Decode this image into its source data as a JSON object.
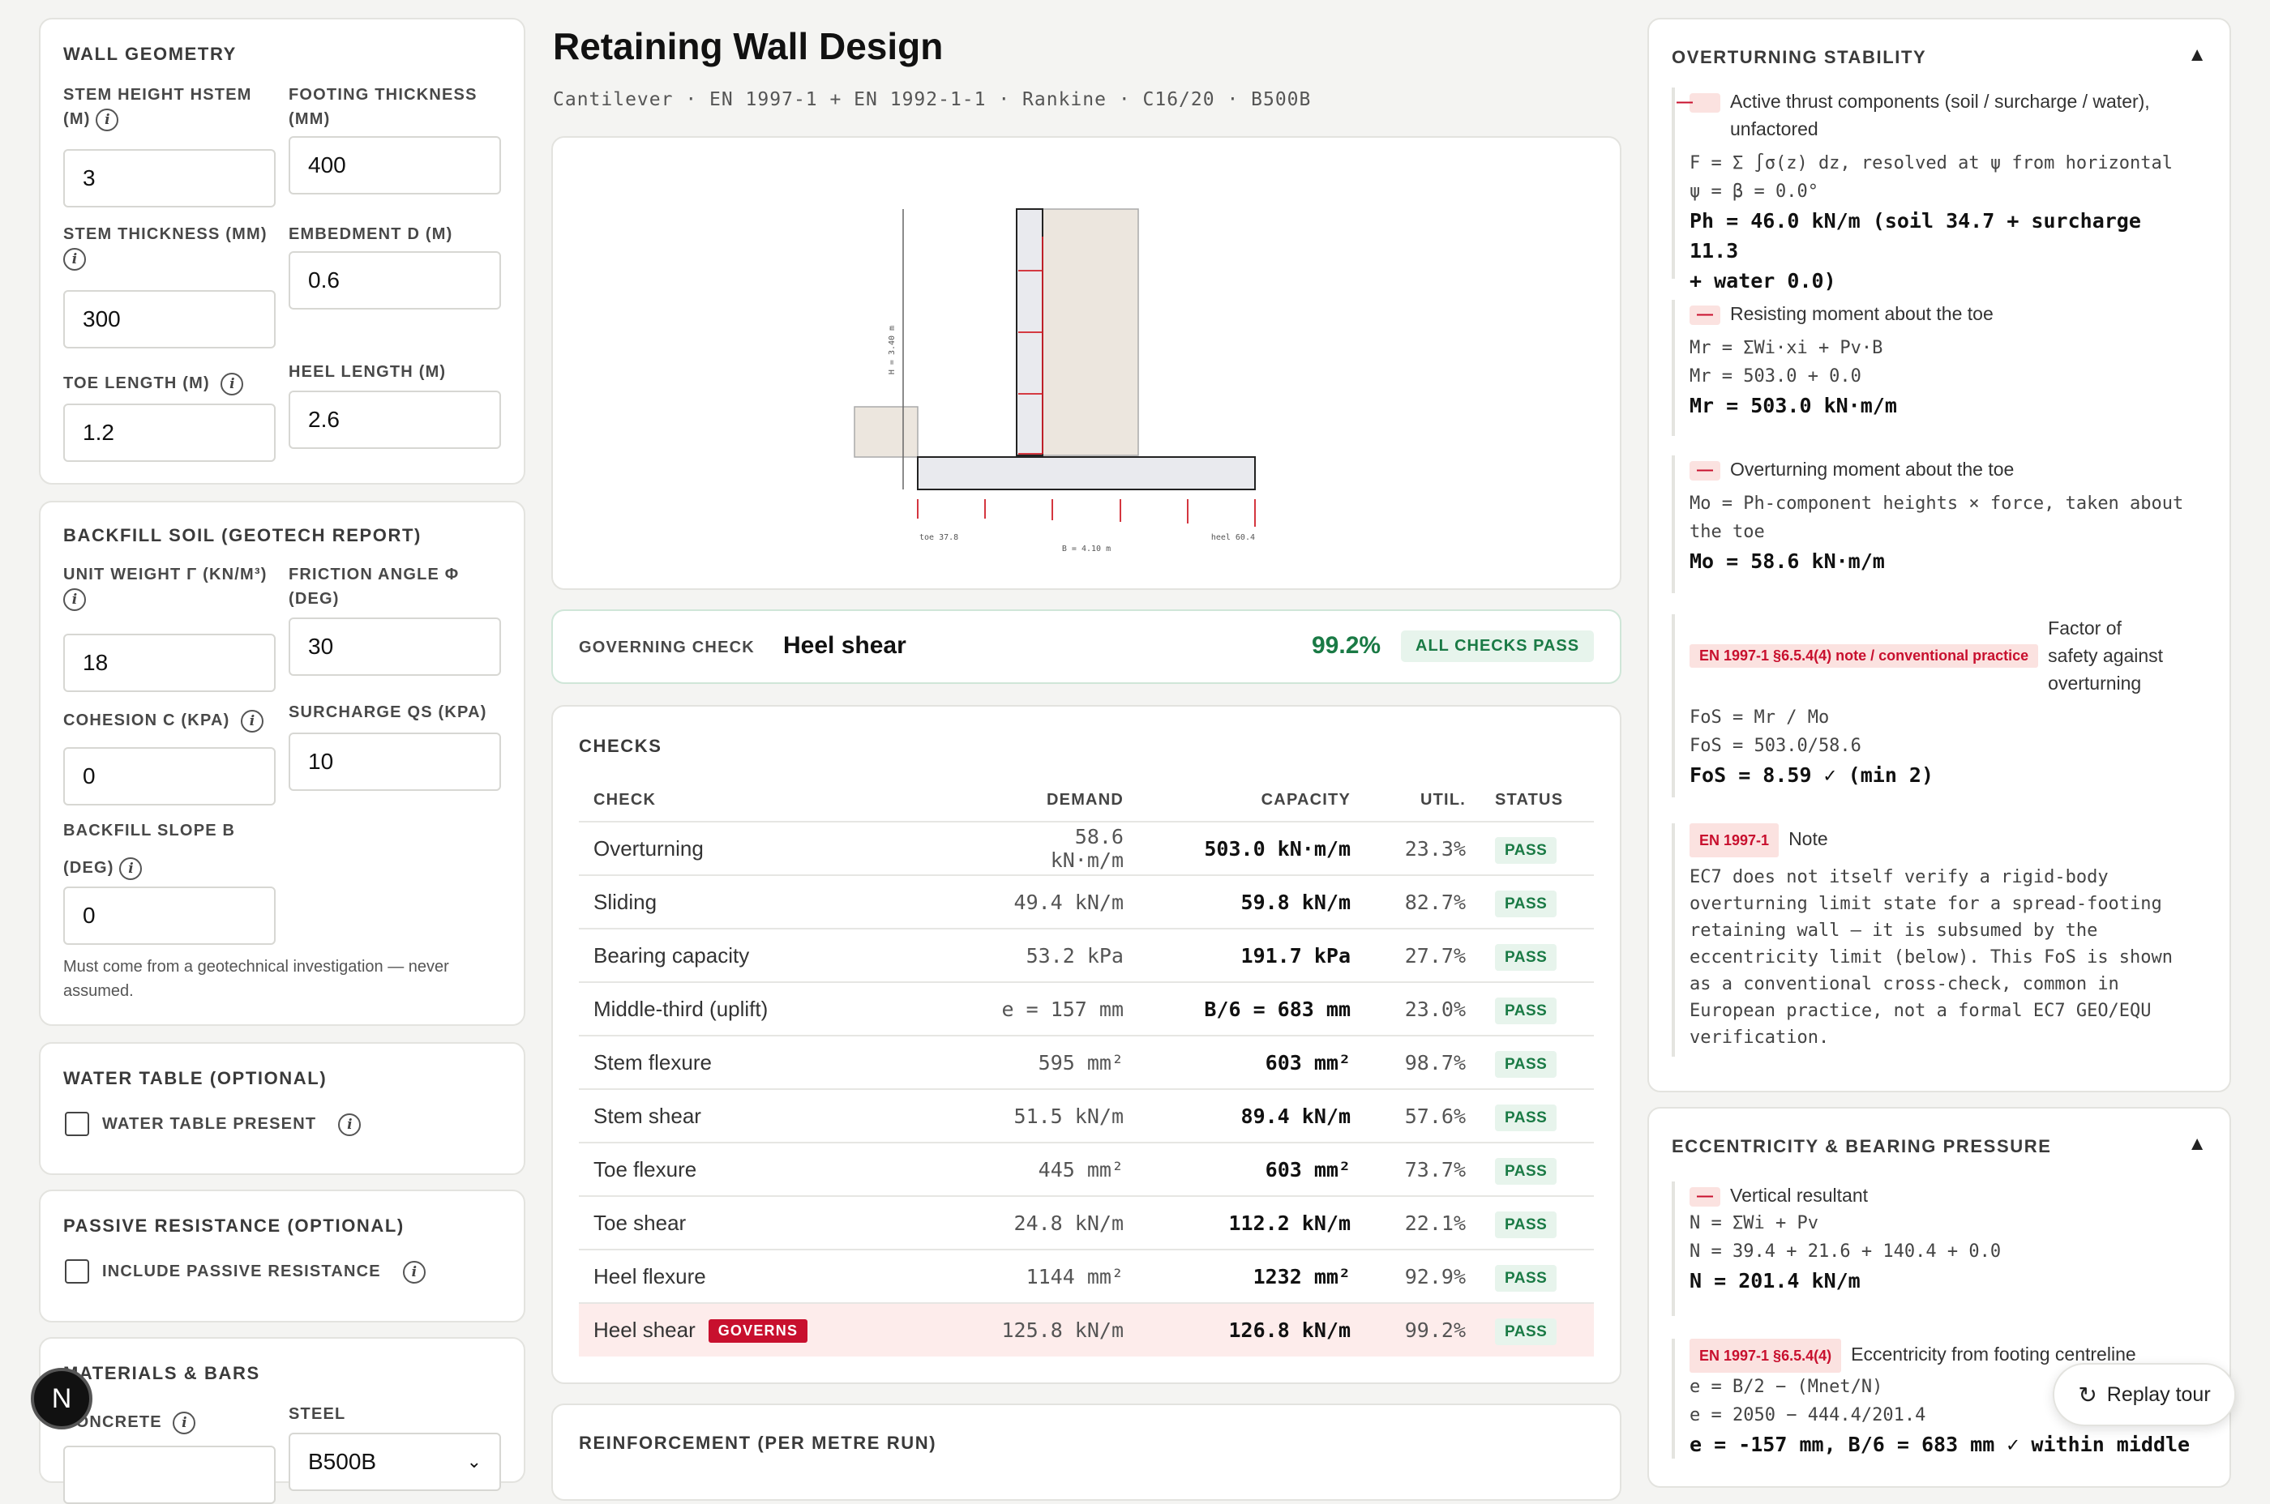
{
  "page": {
    "title": "Retaining Wall Design",
    "subtitle": "Cantilever · EN 1997-1 + EN 1992-1-1 · Rankine · C16/20 · B500B"
  },
  "geometry": {
    "heading": "WALL GEOMETRY",
    "stem_height": {
      "label": "STEM HEIGHT HSTEM",
      "label2": "(M)",
      "value": "3"
    },
    "footing_thickness": {
      "label": "FOOTING THICKNESS",
      "label2": "(MM)",
      "value": "400"
    },
    "stem_thickness": {
      "label": "STEM THICKNESS (MM)",
      "value": "300"
    },
    "embedment": {
      "label": "EMBEDMENT D (M)",
      "value": "0.6"
    },
    "toe_length": {
      "label": "TOE LENGTH (M)",
      "value": "1.2"
    },
    "heel_length": {
      "label": "HEEL LENGTH (M)",
      "value": "2.6"
    }
  },
  "soil": {
    "heading": "BACKFILL SOIL (GEOTECH REPORT)",
    "unit_weight": {
      "label": "UNIT WEIGHT Γ (KN/M³)",
      "value": "18"
    },
    "friction": {
      "label": "FRICTION ANGLE Φ",
      "label2": "(DEG)",
      "value": "30"
    },
    "cohesion": {
      "label": "COHESION C (KPA)",
      "value": "0"
    },
    "surcharge": {
      "label": "SURCHARGE QS (KPA)",
      "value": "10"
    },
    "slope": {
      "label": "BACKFILL SLOPE Β",
      "label2": "(DEG)",
      "value": "0"
    },
    "note1": "Must come from a geotechnical investigation — never",
    "note2": "assumed."
  },
  "water": {
    "heading": "WATER TABLE (OPTIONAL)",
    "checkbox": "WATER TABLE PRESENT",
    "checked": false
  },
  "passive": {
    "heading": "PASSIVE RESISTANCE (OPTIONAL)",
    "checkbox": "INCLUDE PASSIVE RESISTANCE",
    "checked": false
  },
  "materials": {
    "heading": "MATERIALS & BARS",
    "concrete_label": "CONCRETE",
    "steel_label": "STEEL",
    "steel_value": "B500B"
  },
  "diagram": {
    "h_label": "H = 3.40 m",
    "b_label": "B = 4.10 m",
    "toe_label": "toe 37.8",
    "heel_label": "heel 60.4"
  },
  "governing": {
    "label": "GOVERNING CHECK",
    "name": "Heel shear",
    "pct": "99.2%",
    "badge": "ALL CHECKS PASS"
  },
  "checks": {
    "heading": "CHECKS",
    "columns": [
      "CHECK",
      "DEMAND",
      "CAPACITY",
      "UTIL.",
      "STATUS"
    ],
    "governs_tag": "GOVERNS",
    "rows": [
      {
        "check": "Overturning",
        "demand": "58.6 kN·m/m",
        "capacity": "503.0 kN·m/m",
        "util": "23.3%",
        "status": "PASS"
      },
      {
        "check": "Sliding",
        "demand": "49.4 kN/m",
        "capacity": "59.8 kN/m",
        "util": "82.7%",
        "status": "PASS"
      },
      {
        "check": "Bearing capacity",
        "demand": "53.2 kPa",
        "capacity": "191.7 kPa",
        "util": "27.7%",
        "status": "PASS"
      },
      {
        "check": "Middle-third (uplift)",
        "demand": "e = 157 mm",
        "capacity": "B/6 = 683 mm",
        "util": "23.0%",
        "status": "PASS"
      },
      {
        "check": "Stem flexure",
        "demand": "595 mm²",
        "capacity": "603 mm²",
        "util": "98.7%",
        "status": "PASS"
      },
      {
        "check": "Stem shear",
        "demand": "51.5 kN/m",
        "capacity": "89.4 kN/m",
        "util": "57.6%",
        "status": "PASS"
      },
      {
        "check": "Toe flexure",
        "demand": "445 mm²",
        "capacity": "603 mm²",
        "util": "73.7%",
        "status": "PASS"
      },
      {
        "check": "Toe shear",
        "demand": "24.8 kN/m",
        "capacity": "112.2 kN/m",
        "util": "22.1%",
        "status": "PASS"
      },
      {
        "check": "Heel flexure",
        "demand": "1144 mm²",
        "capacity": "1232 mm²",
        "util": "92.9%",
        "status": "PASS"
      },
      {
        "check": "Heel shear",
        "demand": "125.8 kN/m",
        "capacity": "126.8 kN/m",
        "util": "99.2%",
        "status": "PASS"
      }
    ]
  },
  "reinforcement": {
    "heading": "REINFORCEMENT (PER METRE RUN)"
  },
  "overturning": {
    "heading": "OVERTURNING STABILITY",
    "b1": {
      "title1": "Active thrust components (soil / surcharge / water),",
      "title2": "unfactored",
      "f1": "F = Σ ∫σ(z) dz, resolved at ψ from horizontal",
      "f2": "ψ = β = 0.0°",
      "r1": "Ph = 46.0 kN/m (soil 34.7 + surcharge 11.3",
      "r2": "+ water 0.0)"
    },
    "b2": {
      "title": "Resisting moment about the toe",
      "f1": "Mr = ΣWi·xi + Pv·B",
      "f2": "Mr = 503.0 + 0.0",
      "r": "Mr = 503.0 kN·m/m"
    },
    "b3": {
      "title": "Overturning moment about the toe",
      "f1": "Mo = Ph-component heights × force, taken about",
      "f2": "the toe",
      "r": "Mo = 58.6 kN·m/m"
    },
    "b4": {
      "ref": "EN 1997-1 §6.5.4(4) note / conventional practice",
      "t1": "Factor of",
      "t2": "safety against",
      "t3": "overturning",
      "f1": "FoS = Mr / Mo",
      "f2": "FoS = 503.0/58.6",
      "r": "FoS = 8.59 ✓ (min 2)"
    },
    "b5": {
      "ref": "EN 1997-1",
      "title": "Note",
      "lines": [
        "EC7 does not itself verify a rigid-body",
        "overturning limit state for a spread-footing",
        "retaining wall — it is subsumed by the",
        "eccentricity limit (below). This FoS is shown",
        "as a conventional cross-check, common in",
        "European practice, not a formal EC7 GEO/EQU",
        "verification."
      ]
    }
  },
  "eccentricity": {
    "heading": "ECCENTRICITY & BEARING PRESSURE",
    "b1": {
      "title": "Vertical resultant",
      "f1": "N = ΣWi + Pv",
      "f2": "N = 39.4 + 21.6 + 140.4 + 0.0",
      "r": "N = 201.4 kN/m"
    },
    "b2": {
      "ref": "EN 1997-1 §6.5.4(4)",
      "title": "Eccentricity from footing centreline",
      "f1": "e = B/2 − (Mnet/N)",
      "f2": "e = 2050 − 444.4/201.4",
      "r": "e = -157 mm, B/6 = 683 mm ✓ within middle"
    }
  },
  "replay": {
    "label": "Replay tour"
  },
  "avatar": {
    "letter": "N"
  }
}
